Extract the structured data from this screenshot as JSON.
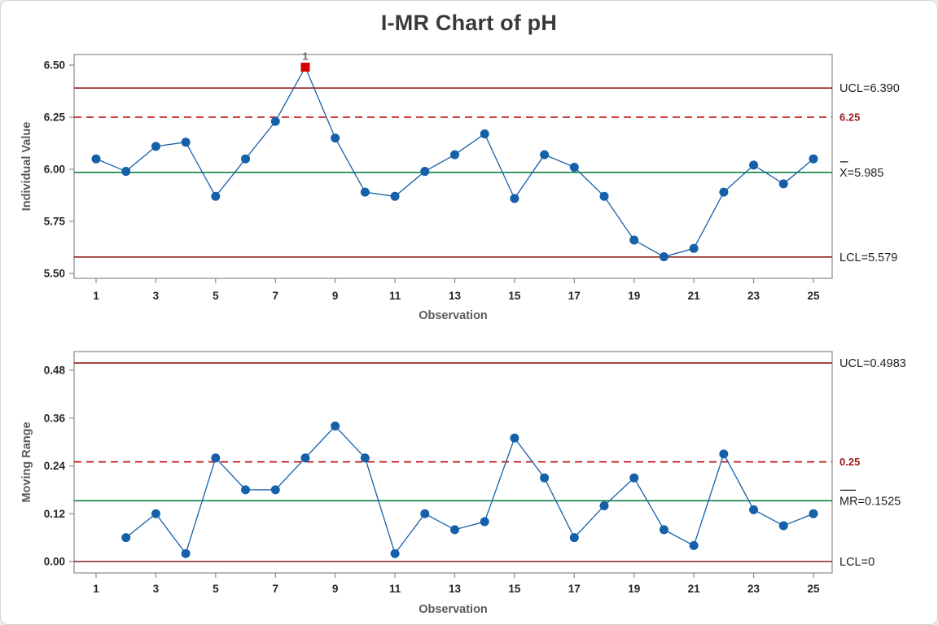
{
  "title": "I-MR Chart of pH",
  "colors": {
    "series_blue": "#1560A8",
    "center_line_green": "#0B8043",
    "control_limit_dark_red": "#8E1B1B",
    "reference_dashed_red": "#C00000",
    "reference_label_red": "#9E1B1B",
    "out_of_control_red": "#D40000",
    "frame_gray": "#8A8A8A"
  },
  "chart_data": [
    {
      "type": "line",
      "name": "individuals-chart",
      "xlabel": "Observation",
      "ylabel": "Individual Value",
      "x": [
        1,
        2,
        3,
        4,
        5,
        6,
        7,
        8,
        9,
        10,
        11,
        12,
        13,
        14,
        15,
        16,
        17,
        18,
        19,
        20,
        21,
        22,
        23,
        24,
        25
      ],
      "values": [
        6.05,
        5.99,
        6.11,
        6.13,
        5.87,
        6.05,
        6.23,
        6.49,
        6.15,
        5.89,
        5.87,
        5.99,
        6.07,
        6.17,
        5.86,
        6.07,
        6.01,
        5.87,
        5.66,
        5.58,
        5.62,
        5.89,
        6.02,
        5.93,
        6.05
      ],
      "xticks": [
        1,
        3,
        5,
        7,
        9,
        11,
        13,
        15,
        17,
        19,
        21,
        23,
        25
      ],
      "yticks": [
        {
          "v": 5.5,
          "label": "5.50"
        },
        {
          "v": 5.75,
          "label": "5.75"
        },
        {
          "v": 6.0,
          "label": "6.00"
        },
        {
          "v": 6.25,
          "label": "6.25"
        },
        {
          "v": 6.5,
          "label": "6.50"
        }
      ],
      "ylim": [
        5.44,
        6.57
      ],
      "grid": false,
      "legend": "none",
      "center": 5.985,
      "ucl": 6.39,
      "lcl": 5.579,
      "reference": 6.25,
      "labels": {
        "ucl": "UCL=6.390",
        "center": "X=5.985",
        "center_bar_chars": 1,
        "lcl": "LCL=5.579",
        "reference": "6.25"
      },
      "out_of_control": [
        {
          "x": 8,
          "value": 6.49,
          "label": "1"
        }
      ]
    },
    {
      "type": "line",
      "name": "moving-range-chart",
      "xlabel": "Observation",
      "ylabel": "Moving Range",
      "x": [
        2,
        3,
        4,
        5,
        6,
        7,
        8,
        9,
        10,
        11,
        12,
        13,
        14,
        15,
        16,
        17,
        18,
        19,
        20,
        21,
        22,
        23,
        24,
        25
      ],
      "values": [
        0.06,
        0.12,
        0.02,
        0.26,
        0.18,
        0.18,
        0.26,
        0.34,
        0.26,
        0.02,
        0.12,
        0.08,
        0.1,
        0.31,
        0.21,
        0.06,
        0.14,
        0.21,
        0.08,
        0.04,
        0.27,
        0.13,
        0.09,
        0.12
      ],
      "xticks": [
        1,
        3,
        5,
        7,
        9,
        11,
        13,
        15,
        17,
        19,
        21,
        23,
        25
      ],
      "yticks": [
        {
          "v": 0.0,
          "label": "0.00"
        },
        {
          "v": 0.12,
          "label": "0.12"
        },
        {
          "v": 0.24,
          "label": "0.24"
        },
        {
          "v": 0.36,
          "label": "0.36"
        },
        {
          "v": 0.48,
          "label": "0.48"
        }
      ],
      "ylim": [
        -0.03,
        0.53
      ],
      "grid": false,
      "legend": "none",
      "center": 0.1525,
      "ucl": 0.4983,
      "lcl": 0,
      "reference": 0.25,
      "labels": {
        "ucl": "UCL=0.4983",
        "center": "MR=0.1525",
        "center_bar_chars": 2,
        "lcl": "LCL=0",
        "reference": "0.25"
      },
      "out_of_control": []
    }
  ]
}
